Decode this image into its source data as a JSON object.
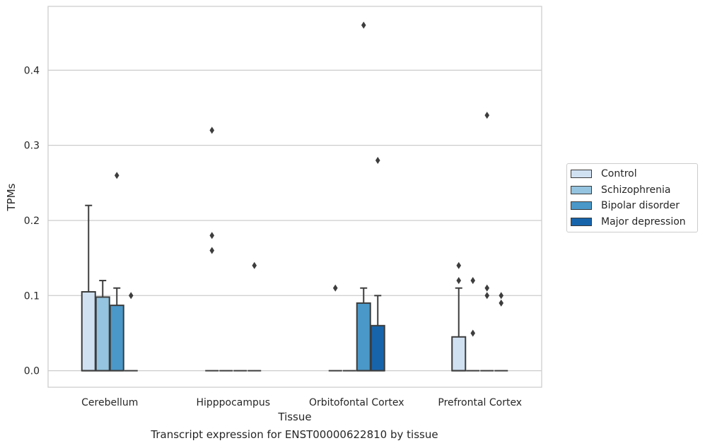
{
  "chart_data": {
    "type": "box",
    "caption": "Transcript expression for ENST00000622810 by tissue",
    "xlabel": "Tissue",
    "ylabel": "TPMs",
    "ylim": [
      -0.022,
      0.485
    ],
    "yticks": [
      0.0,
      0.1,
      0.2,
      0.3,
      0.4
    ],
    "ytick_labels": [
      "0.0",
      "0.1",
      "0.2",
      "0.3",
      "0.4"
    ],
    "grid": "horizontal",
    "legend_position": "right",
    "categories": [
      "Cerebellum",
      "Hipppocampus",
      "Orbitofontal Cortex",
      "Prefrontal Cortex"
    ],
    "series": [
      {
        "name": "Control",
        "color": "#d0e1f2",
        "boxes": [
          {
            "q1": 0,
            "median": 0,
            "q3": 0.105,
            "whisker_low": 0,
            "whisker_high": 0.22,
            "outliers": []
          },
          {
            "q1": 0,
            "median": 0,
            "q3": 0,
            "whisker_low": 0,
            "whisker_high": 0,
            "outliers": [
              0.32,
              0.18,
              0.16
            ]
          },
          {
            "q1": 0,
            "median": 0,
            "q3": 0,
            "whisker_low": 0,
            "whisker_high": 0,
            "outliers": [
              0.11
            ]
          },
          {
            "q1": 0,
            "median": 0,
            "q3": 0.045,
            "whisker_low": 0,
            "whisker_high": 0.11,
            "outliers": [
              0.14,
              0.12
            ]
          }
        ]
      },
      {
        "name": "Schizophrenia",
        "color": "#94c4df",
        "boxes": [
          {
            "q1": 0,
            "median": 0,
            "q3": 0.098,
            "whisker_low": 0,
            "whisker_high": 0.12,
            "outliers": []
          },
          {
            "q1": 0,
            "median": 0,
            "q3": 0,
            "whisker_low": 0,
            "whisker_high": 0,
            "outliers": []
          },
          {
            "q1": 0,
            "median": 0,
            "q3": 0,
            "whisker_low": 0,
            "whisker_high": 0,
            "outliers": []
          },
          {
            "q1": 0,
            "median": 0,
            "q3": 0,
            "whisker_low": 0,
            "whisker_high": 0,
            "outliers": [
              0.12,
              0.05
            ]
          }
        ]
      },
      {
        "name": "Bipolar disorder",
        "color": "#4a98c9",
        "boxes": [
          {
            "q1": 0,
            "median": 0,
            "q3": 0.087,
            "whisker_low": 0,
            "whisker_high": 0.11,
            "outliers": [
              0.26
            ]
          },
          {
            "q1": 0,
            "median": 0,
            "q3": 0,
            "whisker_low": 0,
            "whisker_high": 0,
            "outliers": []
          },
          {
            "q1": 0,
            "median": 0,
            "q3": 0.09,
            "whisker_low": 0,
            "whisker_high": 0.11,
            "outliers": [
              0.46
            ]
          },
          {
            "q1": 0,
            "median": 0,
            "q3": 0,
            "whisker_low": 0,
            "whisker_high": 0,
            "outliers": [
              0.34,
              0.11,
              0.1
            ]
          }
        ]
      },
      {
        "name": "Major depression",
        "color": "#1764ab",
        "boxes": [
          {
            "q1": 0,
            "median": 0,
            "q3": 0,
            "whisker_low": 0,
            "whisker_high": 0,
            "outliers": [
              0.1
            ]
          },
          {
            "q1": 0,
            "median": 0,
            "q3": 0,
            "whisker_low": 0,
            "whisker_high": 0,
            "outliers": [
              0.14
            ]
          },
          {
            "q1": 0,
            "median": 0,
            "q3": 0.06,
            "whisker_low": 0,
            "whisker_high": 0.1,
            "outliers": [
              0.28
            ]
          },
          {
            "q1": 0,
            "median": 0,
            "q3": 0,
            "whisker_low": 0,
            "whisker_high": 0,
            "outliers": [
              0.1,
              0.09
            ]
          }
        ]
      }
    ]
  }
}
